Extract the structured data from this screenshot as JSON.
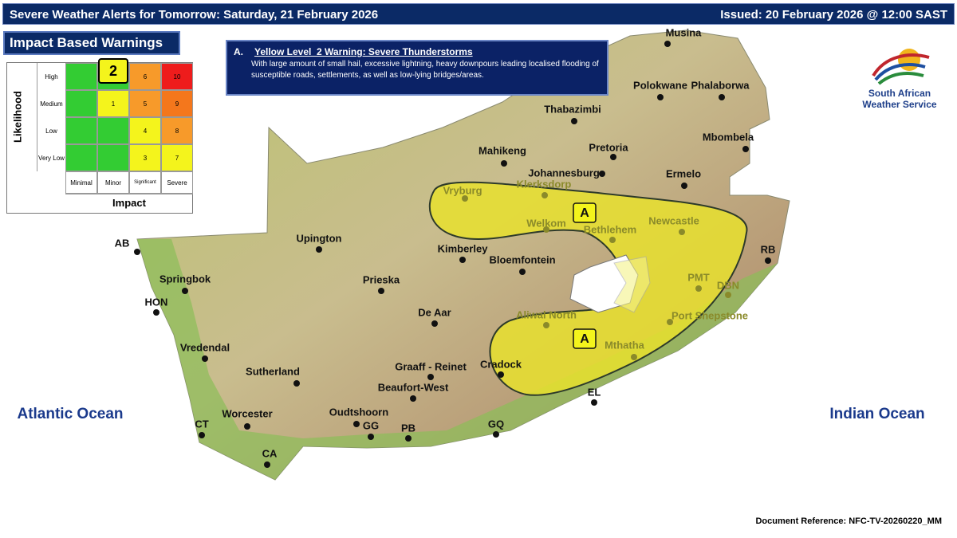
{
  "header": {
    "title": "Severe Weather Alerts for Tomorrow: Saturday, 21 February 2026",
    "issued": "Issued: 20 February 2026 @ 12:00 SAST"
  },
  "impact_matrix": {
    "title": "Impact Based Warnings",
    "y_label": "Likelihood",
    "x_label": "Impact",
    "columns": [
      "Minimal",
      "Minor",
      "Significant",
      "Severe"
    ],
    "rows": [
      {
        "label": "High",
        "cells": [
          null,
          2,
          6,
          10
        ]
      },
      {
        "label": "Medium",
        "cells": [
          null,
          1,
          5,
          9
        ]
      },
      {
        "label": "Low",
        "cells": [
          null,
          null,
          4,
          8
        ]
      },
      {
        "label": "Very Low",
        "cells": [
          null,
          null,
          3,
          7
        ]
      }
    ],
    "highlighted": {
      "row": 0,
      "column": 1
    }
  },
  "warning": {
    "letter": "A.",
    "title": "Yellow Level  2 Warning: Severe Thunderstorms",
    "text": "With large amount of small hail, excessive lightning, heavy downpours leading localised flooding of susceptible roads, settlements, as well as low-lying bridges/areas."
  },
  "map": {
    "area_labels": [
      "A",
      "A"
    ],
    "oceans": [
      "Atlantic Ocean",
      "Indian Ocean"
    ],
    "places": [
      "Musina",
      "Polokwane",
      "Phalaborwa",
      "Thabazimbi",
      "Mahikeng",
      "Pretoria",
      "Johannesburg",
      "Mbombela",
      "Ermelo",
      "Klerksdorp",
      "Vryburg",
      "Welkom",
      "Bethlehem",
      "Newcastle",
      "Upington",
      "Kimberley",
      "Bloemfontein",
      "RB",
      "Prieska",
      "PMT",
      "DBN",
      "Springbok",
      "HON",
      "De Aar",
      "Aliwal North",
      "Port Shepstone",
      "Vredendal",
      "Mthatha",
      "Sutherland",
      "Graaff - Reinet",
      "Cradock",
      "Beaufort-West",
      "EL",
      "Worcester",
      "Oudtshoorn",
      "CT",
      "GG",
      "PB",
      "GQ",
      "CA",
      "AB"
    ]
  },
  "logo": {
    "line1": "South African",
    "line2": "Weather Service"
  },
  "footer": {
    "reference": "Document Reference: NFC-TV-20260220_MM"
  }
}
